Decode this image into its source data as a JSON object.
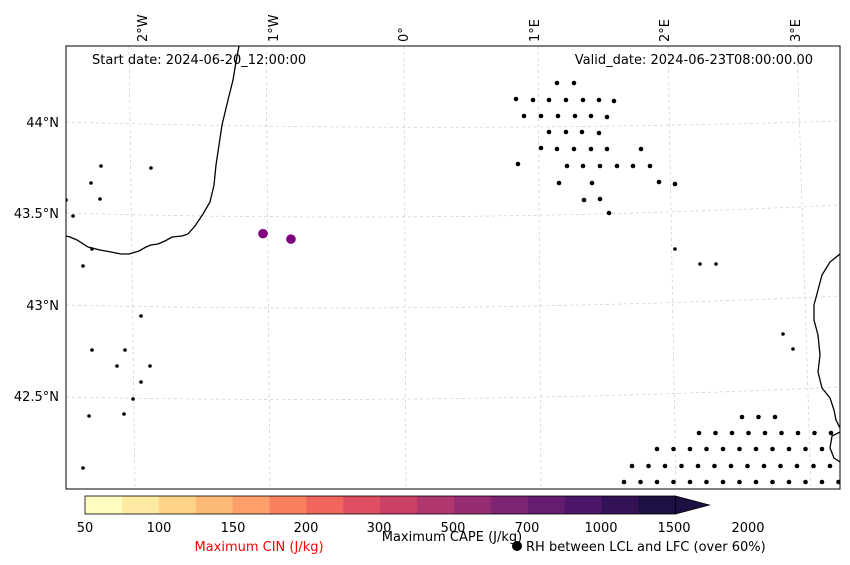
{
  "map": {
    "start_date": "Start date: 2024-06-20_12:00:00",
    "valid_date": "Valid_date: 2024-06-23T08:00:00.00",
    "lon_labels": [
      "2°W",
      "1°W",
      "0°",
      "1°E",
      "2°E",
      "3°E"
    ],
    "lat_labels": [
      "44°N",
      "43.5°N",
      "43°N",
      "42.5°N"
    ],
    "cape_points": [
      {
        "lon": -1.06,
        "lat": 43.39
      },
      {
        "lon": -0.85,
        "lat": 43.36
      }
    ],
    "colors": {
      "coastline": "#000000",
      "gridline": "#cccccc",
      "cape_point": "#800080",
      "rh_dot": "#000000",
      "cin_label": "#ff0000"
    }
  },
  "colorbar": {
    "ticks": [
      "50",
      "100",
      "150",
      "200",
      "300",
      "500",
      "700",
      "1000",
      "1500",
      "2000"
    ],
    "colors": [
      "#fffdc1",
      "#feeaa2",
      "#fed389",
      "#fdb978",
      "#fd9e6b",
      "#f9805f",
      "#f1655c",
      "#e04f61",
      "#ca4067",
      "#b0366e",
      "#962d72",
      "#7d2573",
      "#651d70",
      "#4e1668",
      "#341256",
      "#1d1144"
    ],
    "cape_label": "Maximum CAPE (J/kg)",
    "cin_label": "Maximum CIN (J/kg)",
    "rh_label": "RH between LCL and LFC (over 60%)"
  }
}
